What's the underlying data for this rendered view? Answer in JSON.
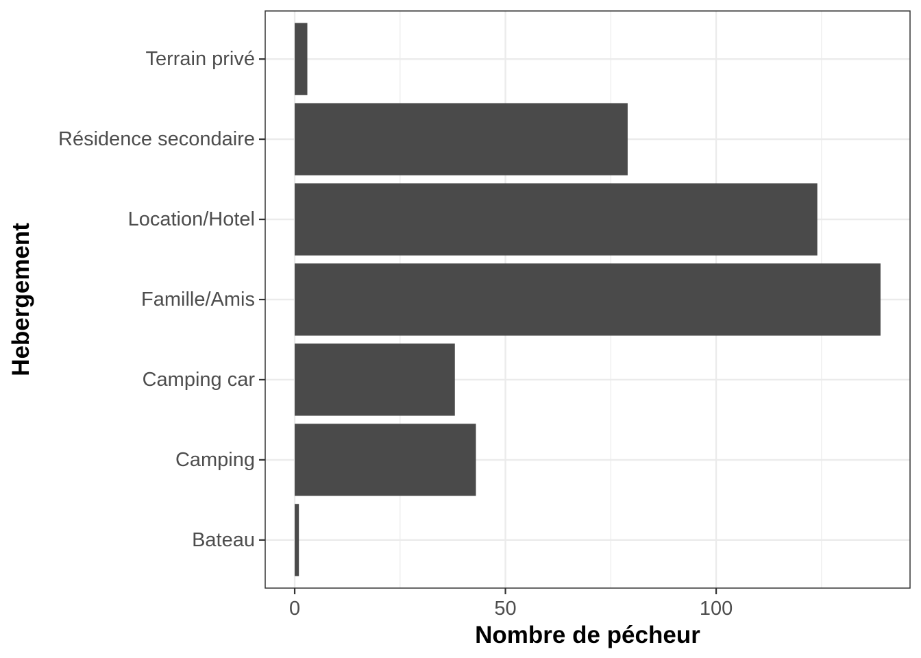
{
  "chart_data": {
    "type": "bar",
    "orientation": "horizontal",
    "categories": [
      "Bateau",
      "Camping",
      "Camping car",
      "Famille/Amis",
      "Location/Hotel",
      "Résidence secondaire",
      "Terrain privé"
    ],
    "values": [
      1,
      43,
      38,
      139,
      124,
      79,
      3
    ],
    "xlabel": "Nombre de pécheur",
    "ylabel": "Hebergement",
    "xlim": [
      -7,
      146
    ],
    "x_ticks": [
      0,
      50,
      100
    ],
    "x_tick_labels": [
      "0",
      "50",
      "100"
    ],
    "x_minor_ticks": [
      25,
      75,
      125
    ],
    "grid": true,
    "bar_color": "#4a4a4a",
    "grid_color": "#ebebeb",
    "panel_border_color": "#333333"
  }
}
